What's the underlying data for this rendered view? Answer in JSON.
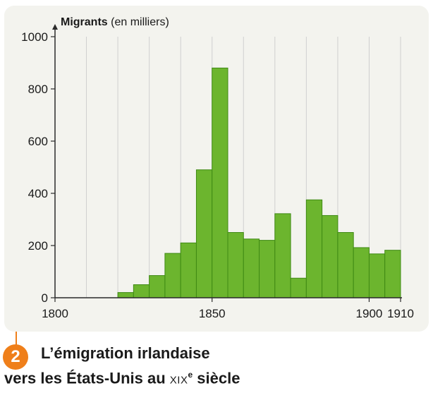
{
  "chart_data": {
    "type": "bar",
    "title": "L’émigration irlandaise vers les États-Unis au XIXe siècle",
    "ylabel_bold": "Migrants",
    "ylabel_unit": "(en milliers)",
    "xlabel": "",
    "x_range": [
      1800,
      1910
    ],
    "ylim": [
      0,
      1000
    ],
    "y_ticks": [
      0,
      200,
      400,
      600,
      800,
      1000
    ],
    "x_tick_labels": [
      "1800",
      "1850",
      "1900",
      "1910"
    ],
    "x_tick_values": [
      1800,
      1850,
      1900,
      1910
    ],
    "bin_width_years": 5,
    "grid": "vertical every 10 years",
    "bars": [
      {
        "start": 1820,
        "value": 20
      },
      {
        "start": 1825,
        "value": 50
      },
      {
        "start": 1830,
        "value": 85
      },
      {
        "start": 1835,
        "value": 170
      },
      {
        "start": 1840,
        "value": 210
      },
      {
        "start": 1845,
        "value": 490
      },
      {
        "start": 1850,
        "value": 880
      },
      {
        "start": 1855,
        "value": 250
      },
      {
        "start": 1860,
        "value": 225
      },
      {
        "start": 1865,
        "value": 220
      },
      {
        "start": 1870,
        "value": 322
      },
      {
        "start": 1875,
        "value": 75
      },
      {
        "start": 1880,
        "value": 375
      },
      {
        "start": 1885,
        "value": 315
      },
      {
        "start": 1890,
        "value": 250
      },
      {
        "start": 1895,
        "value": 192
      },
      {
        "start": 1900,
        "value": 168
      },
      {
        "start": 1905,
        "value": 182
      }
    ],
    "colors": {
      "bar": "#6cb52e",
      "bar_edge": "#3f8a14",
      "grid": "#cfcfcf",
      "axis": "#2a2a2a"
    }
  },
  "figure": {
    "number": "2",
    "caption_line1": "L’émigration irlandaise",
    "caption_line2_prefix": "vers les États-Unis au ",
    "caption_century": "XIX",
    "caption_sup": "e",
    "caption_line2_suffix": " siècle",
    "accent_color": "#ef7f1a"
  }
}
